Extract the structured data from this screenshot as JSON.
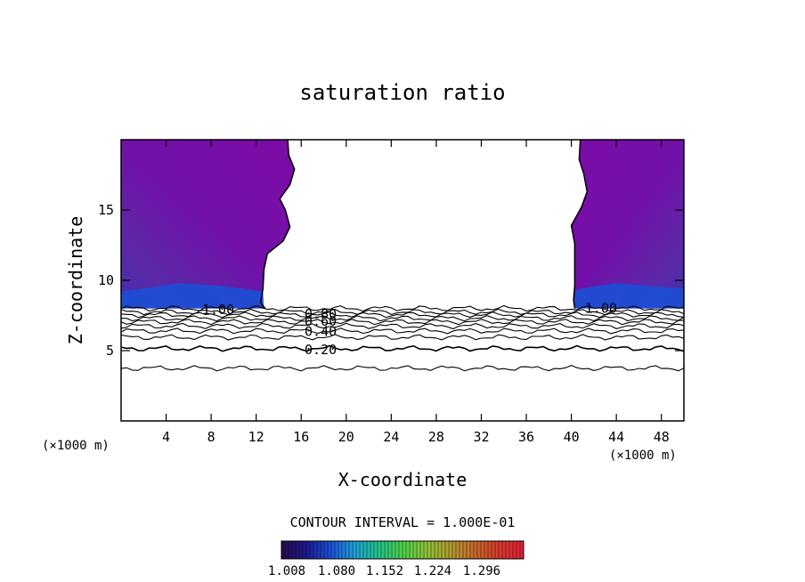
{
  "chart_data": {
    "type": "contour",
    "title": "saturation ratio",
    "xlabel": "X-coordinate",
    "ylabel": "Z-coordinate",
    "x_unit": "(×1000 m)",
    "x_unit_right": "(×1000 m)",
    "xlim": [
      0,
      50
    ],
    "ylim": [
      0,
      20
    ],
    "x_ticks": [
      4,
      8,
      12,
      16,
      20,
      24,
      28,
      32,
      36,
      40,
      44,
      48
    ],
    "y_ticks": [
      5,
      10,
      15
    ],
    "contour_interval_text": "CONTOUR INTERVAL = 1.000E-01",
    "contour_lines": [
      {
        "value": 1.0,
        "z": 8.0
      },
      {
        "value": 0.9,
        "z": 7.75
      },
      {
        "value": 0.8,
        "z": 7.55
      },
      {
        "value": 0.7,
        "z": 7.3
      },
      {
        "value": 0.6,
        "z": 7.05
      },
      {
        "value": 0.5,
        "z": 6.75
      },
      {
        "value": 0.4,
        "z": 6.4
      },
      {
        "value": 0.3,
        "z": 5.95
      },
      {
        "value": 0.2,
        "z": 5.15
      },
      {
        "value": 0.1,
        "z": 3.75
      }
    ],
    "contour_labels": [
      {
        "text": "1.00",
        "x": 7.2,
        "z": 7.9
      },
      {
        "text": "1.00",
        "x": 41.2,
        "z": 8.0
      },
      {
        "text": "0.80",
        "x": 16.3,
        "z": 7.6
      },
      {
        "text": "0.60",
        "x": 16.3,
        "z": 7.1
      },
      {
        "text": "0.40",
        "x": 16.3,
        "z": 6.35
      },
      {
        "text": "0.20",
        "x": 16.3,
        "z": 5.05
      }
    ],
    "supersaturated_regions": [
      {
        "side": "left",
        "x_range": [
          0,
          14.8
        ],
        "z_range": [
          8.0,
          20
        ],
        "color": "#7b0ca6"
      },
      {
        "side": "right",
        "x_range": [
          40.1,
          50
        ],
        "z_range": [
          8.0,
          20
        ],
        "color": "#7b0ca6"
      }
    ],
    "colorbar": {
      "tick_labels": [
        "1.008",
        "1.080",
        "1.152",
        "1.224",
        "1.296"
      ],
      "colors": [
        "#2a0a4a",
        "#1a1a8c",
        "#1b4fd6",
        "#1fa0d8",
        "#21c48a",
        "#4bd04b",
        "#8fc238",
        "#b39a2f",
        "#c8682a",
        "#d93a2a",
        "#e0203a"
      ]
    }
  }
}
